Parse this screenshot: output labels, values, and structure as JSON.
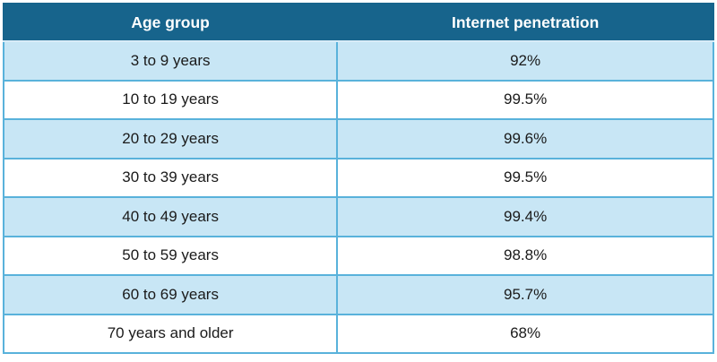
{
  "table": {
    "columns": [
      "Age group",
      "Internet penetration"
    ],
    "rows": [
      {
        "age_group": "3 to 9 years",
        "penetration": "92%"
      },
      {
        "age_group": "10 to 19 years",
        "penetration": "99.5%"
      },
      {
        "age_group": "20 to 29 years",
        "penetration": "99.6%"
      },
      {
        "age_group": "30 to 39 years",
        "penetration": "99.5%"
      },
      {
        "age_group": "40 to 49 years",
        "penetration": "99.4%"
      },
      {
        "age_group": "50 to 59 years",
        "penetration": "98.8%"
      },
      {
        "age_group": "60 to 69 years",
        "penetration": "95.7%"
      },
      {
        "age_group": "70 years and older",
        "penetration": "68%"
      }
    ]
  },
  "chart_data": {
    "type": "table",
    "title": "",
    "columns": [
      "Age group",
      "Internet penetration"
    ],
    "categories": [
      "3 to 9 years",
      "10 to 19 years",
      "20 to 29 years",
      "30 to 39 years",
      "40 to 49 years",
      "50 to 59 years",
      "60 to 69 years",
      "70 years and older"
    ],
    "values": [
      92,
      99.5,
      99.6,
      99.5,
      99.4,
      98.8,
      95.7,
      68
    ],
    "value_unit": "%",
    "layout": {
      "header_position": "top",
      "zebra_striping": true,
      "first_data_row_shaded": true,
      "text_alignment": "center"
    }
  },
  "colors": {
    "header_bg": "#17648C",
    "header_text": "#FFFFFF",
    "row_alt_bg": "#C8E6F5",
    "row_bg": "#FFFFFF",
    "cell_border": "#59B2DB",
    "header_underline": "#D8ECF8",
    "body_text": "#1A1A1A",
    "page_bg": "#FFFFFF"
  }
}
